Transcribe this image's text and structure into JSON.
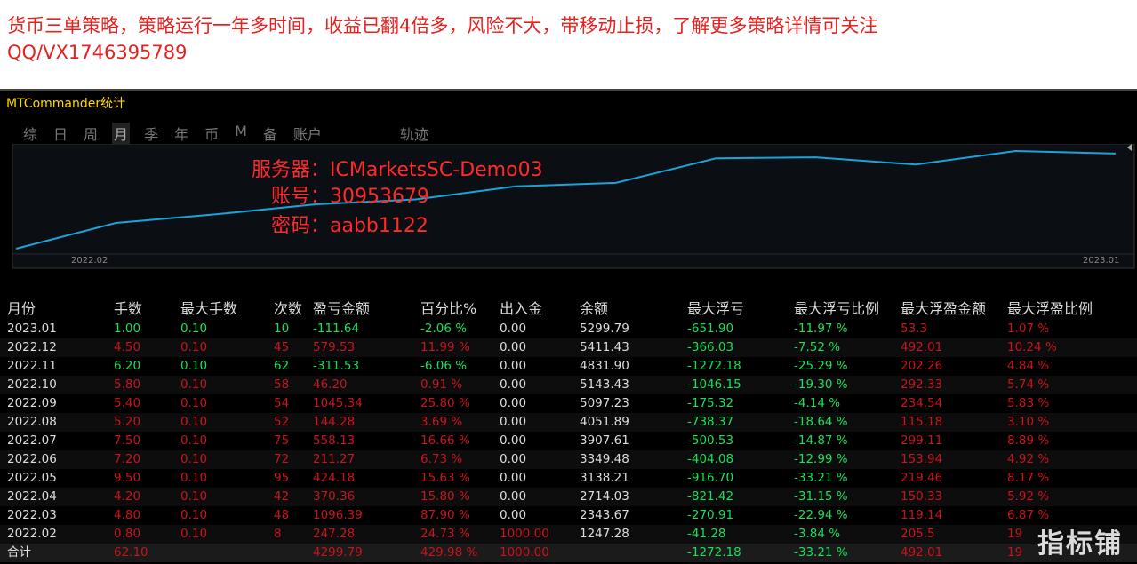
{
  "header": {
    "title": "货币三单策略，策略运行一年多时间，收益已翻4倍多，风险不大，带移动止损，了解更多策略详情可关注QQ/VX1746395789"
  },
  "panel": {
    "title": "MTCommander统计",
    "tabs": [
      "综",
      "日",
      "周",
      "月",
      "季",
      "年",
      "币",
      "M",
      "备",
      "账户",
      "轨迹"
    ]
  },
  "chart": {
    "x_labels": [
      "2022.02",
      "2023.01"
    ],
    "overlay": [
      "服务器：ICMarketsSC-Demo03",
      "账号：30953679",
      "密码：aabb1122"
    ]
  },
  "table": {
    "columns": [
      "月份",
      "手数",
      "最大手数",
      "次数",
      "盈亏金额",
      "百分比%",
      "出入金",
      "余额",
      "最大浮亏",
      "最大浮亏比例",
      "最大浮盈金额",
      "最大浮盈比例"
    ],
    "rows": [
      [
        "2023.01",
        "1.00",
        "0.10",
        "10",
        "-111.64",
        "-2.06 %",
        "0.00",
        "5299.79",
        "-651.90",
        "-11.97 %",
        "53.3",
        "1.07 %"
      ],
      [
        "2022.12",
        "4.50",
        "0.10",
        "45",
        "579.53",
        "11.99 %",
        "0.00",
        "5411.43",
        "-366.03",
        "-7.52 %",
        "492.01",
        "10.24 %"
      ],
      [
        "2022.11",
        "6.20",
        "0.10",
        "62",
        "-311.53",
        "-6.06 %",
        "0.00",
        "4831.90",
        "-1272.18",
        "-25.29 %",
        "202.26",
        "4.84 %"
      ],
      [
        "2022.10",
        "5.80",
        "0.10",
        "58",
        "46.20",
        "0.91 %",
        "0.00",
        "5143.43",
        "-1046.15",
        "-19.30 %",
        "292.33",
        "5.74 %"
      ],
      [
        "2022.09",
        "5.40",
        "0.10",
        "54",
        "1045.34",
        "25.80 %",
        "0.00",
        "5097.23",
        "-175.32",
        "-4.14 %",
        "234.54",
        "5.83 %"
      ],
      [
        "2022.08",
        "5.20",
        "0.10",
        "52",
        "144.28",
        "3.69 %",
        "0.00",
        "4051.89",
        "-738.37",
        "-18.64 %",
        "115.18",
        "3.10 %"
      ],
      [
        "2022.07",
        "7.50",
        "0.10",
        "75",
        "558.13",
        "16.66 %",
        "0.00",
        "3907.61",
        "-500.53",
        "-14.87 %",
        "299.11",
        "8.89 %"
      ],
      [
        "2022.06",
        "7.20",
        "0.10",
        "72",
        "211.27",
        "6.73 %",
        "0.00",
        "3349.48",
        "-404.08",
        "-12.99 %",
        "153.94",
        "4.92 %"
      ],
      [
        "2022.05",
        "9.50",
        "0.10",
        "95",
        "424.18",
        "15.63 %",
        "0.00",
        "3138.21",
        "-916.70",
        "-33.21 %",
        "219.46",
        "8.17 %"
      ],
      [
        "2022.04",
        "4.20",
        "0.10",
        "42",
        "370.36",
        "15.80 %",
        "0.00",
        "2714.03",
        "-821.42",
        "-31.15 %",
        "150.33",
        "5.92 %"
      ],
      [
        "2022.03",
        "4.80",
        "0.10",
        "48",
        "1096.39",
        "87.90 %",
        "0.00",
        "2343.67",
        "-270.91",
        "-22.94 %",
        "119.14",
        "6.87 %"
      ],
      [
        "2022.02",
        "0.80",
        "0.10",
        "8",
        "247.28",
        "24.73 %",
        "1000.00",
        "1247.28",
        "-41.28",
        "-3.84 %",
        "205.5",
        "19"
      ]
    ],
    "total": [
      "合计",
      "62.10",
      null,
      null,
      "4299.79",
      "429.98 %",
      "1000.00",
      null,
      "-1272.18",
      "-33.21 %",
      "492.01",
      "19"
    ]
  },
  "watermark": "指标铺"
}
